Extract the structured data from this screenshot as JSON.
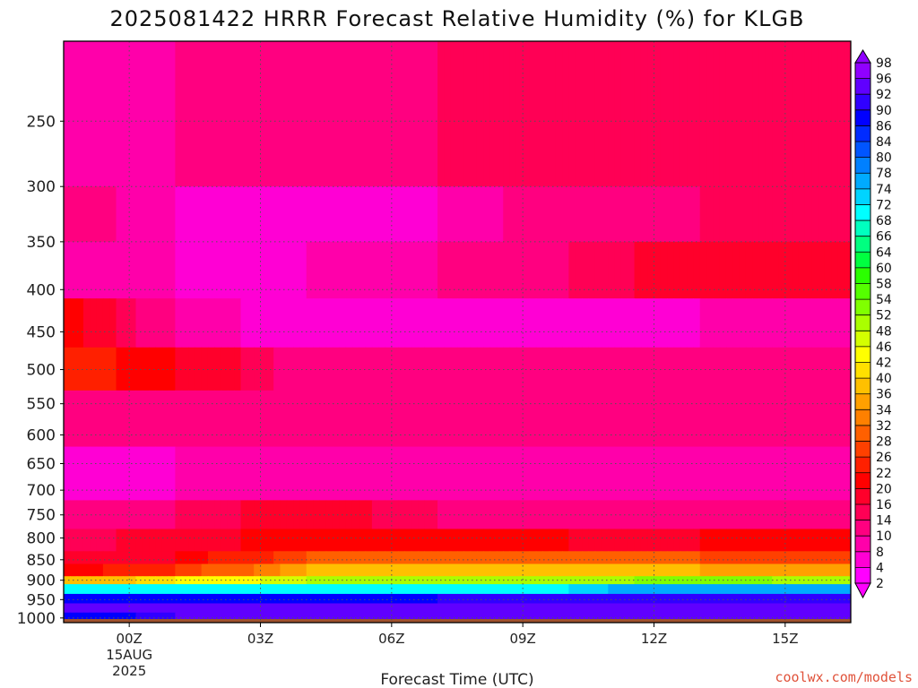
{
  "chart_data": {
    "type": "heatmap",
    "title": "2025081422 HRRR Forecast Relative Humidity (%) for KLGB",
    "xlabel": "Forecast Time (UTC)",
    "ylabel": "",
    "credit": "coolwx.com/models",
    "colors": {
      "ground": "#a0522d",
      "grid": "#555555",
      "scale": [
        "#ff00ff",
        "#ff00d4",
        "#ff00aa",
        "#ff0080",
        "#ff0055",
        "#ff002b",
        "#ff0000",
        "#ff2000",
        "#ff4000",
        "#ff6000",
        "#ff8000",
        "#ffa000",
        "#ffc000",
        "#ffe000",
        "#ffff00",
        "#d4ff00",
        "#aaff00",
        "#80ff00",
        "#55ff00",
        "#2bff00",
        "#00ff40",
        "#00ff80",
        "#00ffbf",
        "#00ffff",
        "#00d4ff",
        "#00aaff",
        "#0080ff",
        "#0055ff",
        "#002bff",
        "#0000ff",
        "#3000ff",
        "#6000ff",
        "#9000ff"
      ]
    },
    "x_axis": {
      "unit": "hours",
      "range": [
        -1.5,
        16.5
      ],
      "ticks": [
        {
          "value": 0,
          "label": "00Z",
          "sub1": "15AUG",
          "sub2": "2025"
        },
        {
          "value": 3,
          "label": "03Z",
          "sub1": "",
          "sub2": ""
        },
        {
          "value": 6,
          "label": "06Z",
          "sub1": "",
          "sub2": ""
        },
        {
          "value": 9,
          "label": "09Z",
          "sub1": "",
          "sub2": ""
        },
        {
          "value": 12,
          "label": "12Z",
          "sub1": "",
          "sub2": ""
        },
        {
          "value": 15,
          "label": "15Z",
          "sub1": "",
          "sub2": ""
        }
      ]
    },
    "y_axis": {
      "unit": "hPa",
      "scale": "log",
      "inverted": true,
      "range": [
        1013,
        200
      ],
      "ticks": [
        250,
        300,
        350,
        400,
        450,
        500,
        550,
        600,
        650,
        700,
        750,
        800,
        850,
        900,
        950,
        1000
      ]
    },
    "colorbar": {
      "levels": [
        2,
        4,
        8,
        10,
        14,
        16,
        20,
        22,
        26,
        28,
        32,
        34,
        36,
        40,
        42,
        46,
        48,
        52,
        54,
        58,
        60,
        64,
        66,
        68,
        72,
        74,
        78,
        80,
        84,
        86,
        90,
        92,
        96,
        98
      ]
    },
    "layers": [
      {
        "p_top": 200,
        "p_bot": 300,
        "rh": [
          8,
          10,
          12,
          14,
          16,
          16,
          14
        ]
      },
      {
        "p_top": 300,
        "p_bot": 350,
        "rh": [
          12,
          8,
          6,
          8,
          12,
          14,
          16
        ]
      },
      {
        "p_top": 350,
        "p_bot": 410,
        "rh": [
          10,
          8,
          8,
          10,
          14,
          18,
          20
        ]
      },
      {
        "p_top": 410,
        "p_bot": 470,
        "rh": [
          22,
          10,
          6,
          4,
          6,
          8,
          10
        ]
      },
      {
        "p_top": 470,
        "p_bot": 530,
        "rh": [
          24,
          20,
          12,
          10,
          12,
          14,
          14
        ]
      },
      {
        "p_top": 530,
        "p_bot": 620,
        "rh": [
          14,
          12,
          10,
          12,
          14,
          14,
          12
        ]
      },
      {
        "p_top": 620,
        "p_bot": 720,
        "rh": [
          6,
          8,
          10,
          10,
          10,
          10,
          10
        ]
      },
      {
        "p_top": 720,
        "p_bot": 780,
        "rh": [
          10,
          14,
          18,
          14,
          12,
          12,
          12
        ]
      },
      {
        "p_top": 780,
        "p_bot": 830,
        "rh": [
          14,
          18,
          22,
          22,
          20,
          20,
          22
        ]
      },
      {
        "p_top": 830,
        "p_bot": 860,
        "rh": [
          16,
          20,
          28,
          32,
          30,
          28,
          28
        ]
      },
      {
        "p_top": 860,
        "p_bot": 890,
        "rh": [
          20,
          26,
          36,
          40,
          38,
          36,
          36
        ]
      },
      {
        "p_top": 890,
        "p_bot": 910,
        "rh": [
          36,
          42,
          48,
          52,
          50,
          54,
          50
        ]
      },
      {
        "p_top": 910,
        "p_bot": 935,
        "rh": [
          72,
          70,
          70,
          70,
          72,
          78,
          74
        ]
      },
      {
        "p_top": 935,
        "p_bot": 960,
        "rh": [
          88,
          90,
          90,
          90,
          92,
          92,
          90
        ]
      },
      {
        "p_top": 960,
        "p_bot": 985,
        "rh": [
          94,
          96,
          96,
          96,
          96,
          96,
          96
        ]
      },
      {
        "p_top": 985,
        "p_bot": 1003,
        "rh": [
          86,
          92,
          96,
          96,
          96,
          96,
          94
        ]
      }
    ],
    "layer_times": [
      -1.5,
      1,
      4,
      7,
      10,
      13,
      16.5
    ],
    "ground_top_hPa": 1003
  }
}
